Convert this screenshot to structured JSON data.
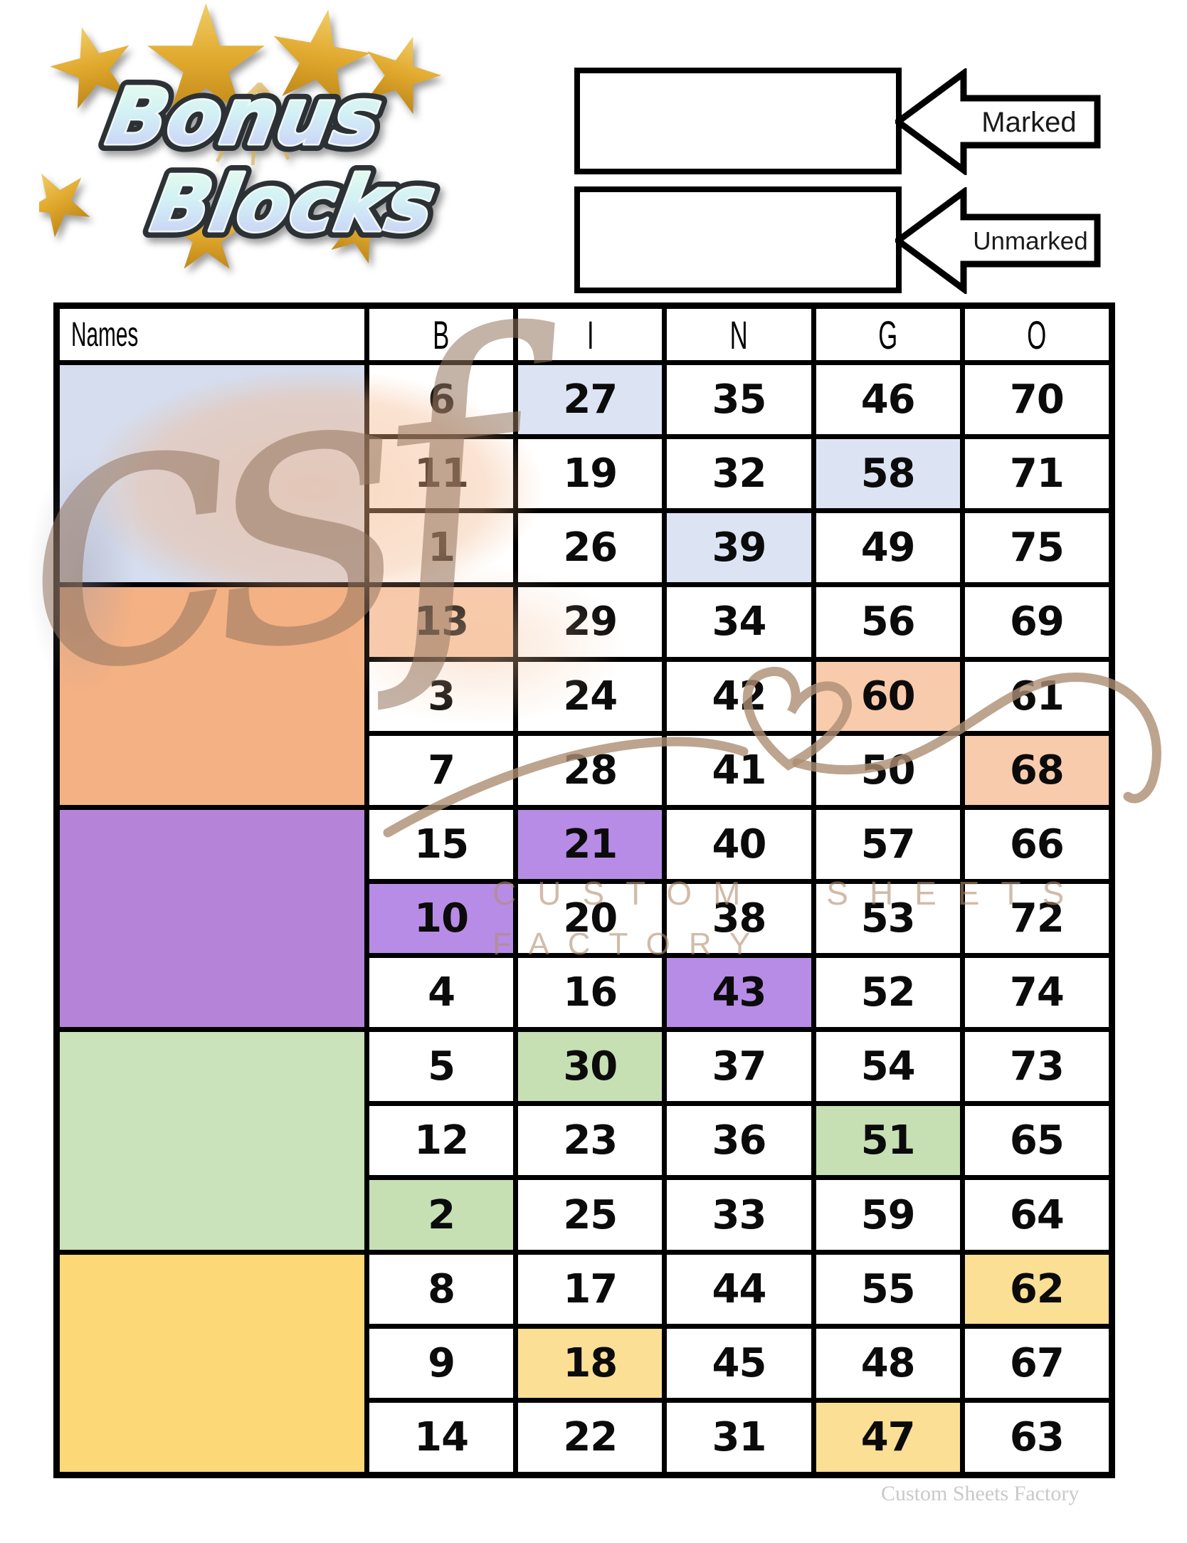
{
  "logo": {
    "line1": "Bonus",
    "line2": "Blocks"
  },
  "legend": {
    "marked_label": "Marked",
    "unmarked_label": "Unmarked"
  },
  "table": {
    "names_header": "Names",
    "columns": [
      "B",
      "I",
      "N",
      "G",
      "O"
    ],
    "blocks": [
      {
        "block_color": "#d5ddee",
        "cell_color": "#dce4f4",
        "rows": [
          {
            "cells": [
              6,
              27,
              35,
              46,
              70
            ],
            "highlight": 1
          },
          {
            "cells": [
              11,
              19,
              32,
              58,
              71
            ],
            "highlight": 3
          },
          {
            "cells": [
              1,
              26,
              39,
              49,
              75
            ],
            "highlight": 2
          }
        ]
      },
      {
        "block_color": "#f4b183",
        "cell_color": "#f8cbad",
        "rows": [
          {
            "cells": [
              13,
              29,
              34,
              56,
              69
            ],
            "highlight": 0
          },
          {
            "cells": [
              3,
              24,
              42,
              60,
              61
            ],
            "highlight": 3
          },
          {
            "cells": [
              7,
              28,
              41,
              50,
              68
            ],
            "highlight": 4
          }
        ]
      },
      {
        "block_color": "#b583d8",
        "cell_color": "#b78ce6",
        "rows": [
          {
            "cells": [
              15,
              21,
              40,
              57,
              66
            ],
            "highlight": 1
          },
          {
            "cells": [
              10,
              20,
              38,
              53,
              72
            ],
            "highlight": 0
          },
          {
            "cells": [
              4,
              16,
              43,
              52,
              74
            ],
            "highlight": 2
          }
        ]
      },
      {
        "block_color": "#cae3ba",
        "cell_color": "#c6e0b4",
        "rows": [
          {
            "cells": [
              5,
              30,
              37,
              54,
              73
            ],
            "highlight": 1
          },
          {
            "cells": [
              12,
              23,
              36,
              51,
              65
            ],
            "highlight": 3
          },
          {
            "cells": [
              2,
              25,
              33,
              59,
              64
            ],
            "highlight": 0
          }
        ]
      },
      {
        "block_color": "#fcd876",
        "cell_color": "#fbdf95",
        "rows": [
          {
            "cells": [
              8,
              17,
              44,
              55,
              62
            ],
            "highlight": 4
          },
          {
            "cells": [
              9,
              18,
              45,
              48,
              67
            ],
            "highlight": 1
          },
          {
            "cells": [
              14,
              22,
              31,
              47,
              63
            ],
            "highlight": 3
          }
        ]
      }
    ]
  },
  "watermark": {
    "script": "csf",
    "line1": "CUSTOM SHEETS",
    "line2": "FACTORY",
    "credit": "Custom Sheets Factory"
  }
}
